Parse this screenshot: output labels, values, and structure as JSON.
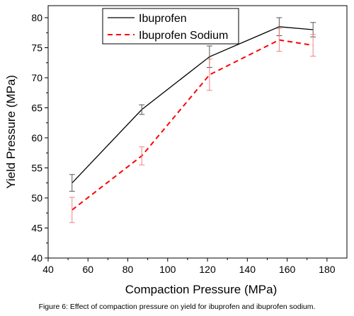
{
  "chart_data": {
    "type": "line",
    "xlabel": "Compaction Pressure (MPa)",
    "ylabel": "Yield Pressure (MPa)",
    "xlim": [
      40,
      190
    ],
    "ylim": [
      40,
      82
    ],
    "xticks": [
      40,
      60,
      80,
      100,
      120,
      140,
      160,
      180
    ],
    "yticks": [
      40,
      45,
      50,
      55,
      60,
      65,
      70,
      75,
      80
    ],
    "grid": false,
    "legend_position": "top-left",
    "series": [
      {
        "name": "Ibuprofen",
        "color": "#000000",
        "style": "solid",
        "x": [
          52,
          87,
          121,
          156,
          173
        ],
        "y": [
          52.5,
          64.7,
          73.5,
          78.5,
          78.0
        ],
        "error": [
          1.4,
          0.8,
          1.8,
          1.5,
          1.2
        ]
      },
      {
        "name": "Ibuprofen Sodium",
        "color": "#ff0000",
        "style": "dashed",
        "x": [
          52,
          87,
          121,
          156,
          173
        ],
        "y": [
          48.0,
          57.0,
          70.5,
          76.3,
          75.4
        ],
        "error": [
          2.1,
          1.5,
          2.6,
          1.9,
          1.8
        ]
      }
    ]
  },
  "caption": "Figure 6: Effect of compaction pressure on yield for ibuprofen and ibuprofen sodium."
}
